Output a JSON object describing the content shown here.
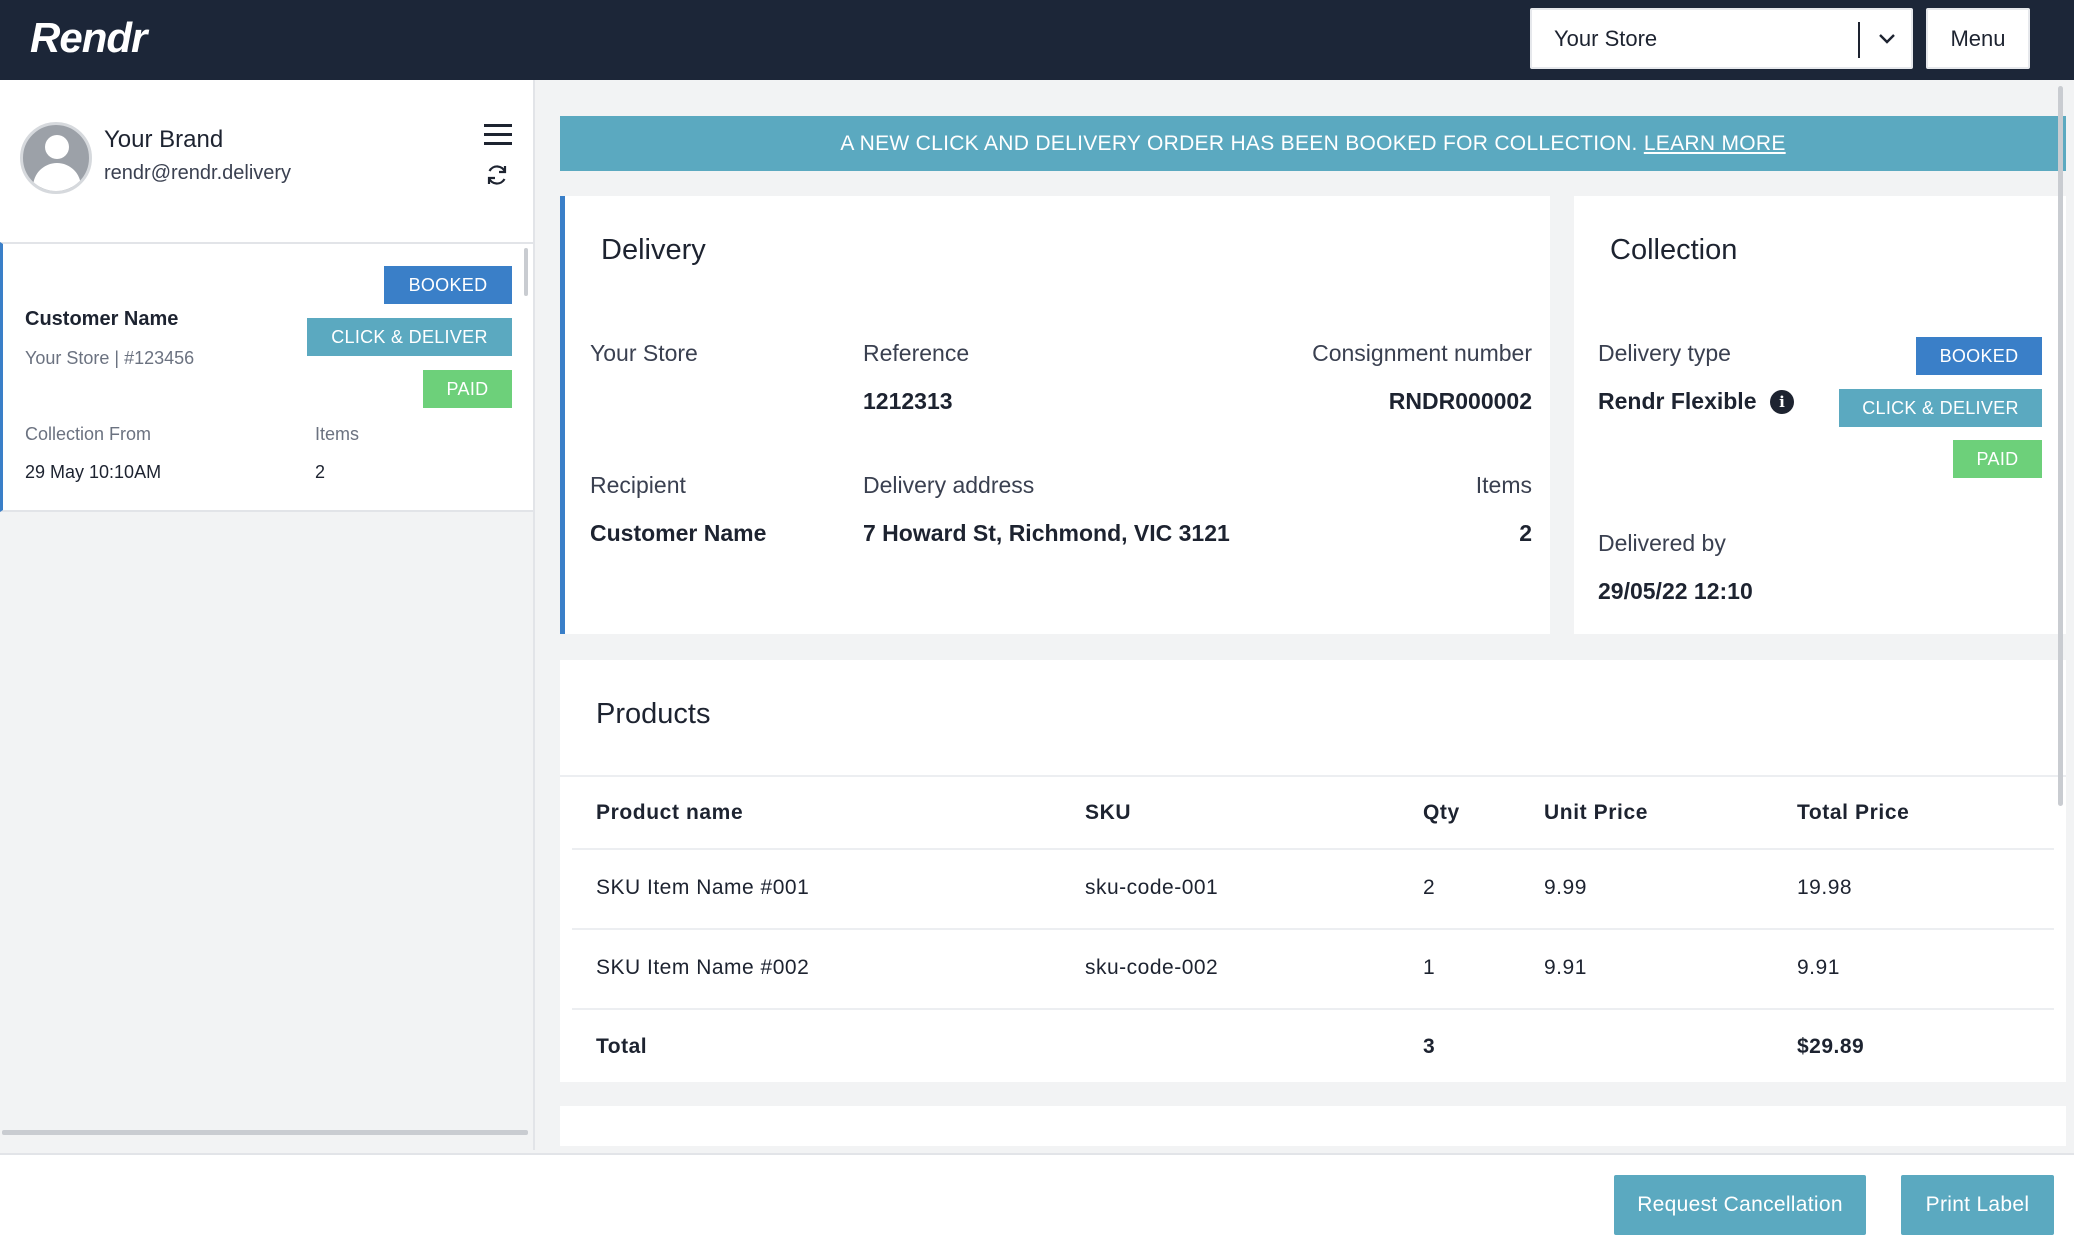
{
  "app": {
    "logo": "Rendr"
  },
  "header": {
    "store_select": "Your Store",
    "menu_label": "Menu"
  },
  "profile": {
    "brand": "Your Brand",
    "email": "rendr@rendr.delivery"
  },
  "order_card": {
    "badges": {
      "booked": "BOOKED",
      "click_deliver": "CLICK & DELIVER",
      "paid": "PAID"
    },
    "customer_name": "Customer Name",
    "store_ref": "Your Store | #123456",
    "collection_from_label": "Collection From",
    "collection_from_value": "29 May 10:10AM",
    "items_label": "Items",
    "items_value": "2"
  },
  "banner": {
    "text": "A NEW CLICK AND DELIVERY ORDER HAS BEEN BOOKED FOR COLLECTION.",
    "link": "LEARN MORE"
  },
  "delivery": {
    "title": "Delivery",
    "store": "Your Store",
    "reference_label": "Reference",
    "reference_value": "1212313",
    "consignment_label": "Consignment number",
    "consignment_value": "RNDR000002",
    "recipient_label": "Recipient",
    "recipient_value": "Customer Name",
    "address_label": "Delivery address",
    "address_value": "7 Howard St, Richmond, VIC 3121",
    "items_label": "Items",
    "items_value": "2"
  },
  "collection": {
    "title": "Collection",
    "delivery_type_label": "Delivery type",
    "delivery_type_value": "Rendr Flexible",
    "badges": {
      "booked": "BOOKED",
      "click_deliver": "CLICK & DELIVER",
      "paid": "PAID"
    },
    "delivered_by_label": "Delivered by",
    "delivered_by_value": "29/05/22 12:10"
  },
  "products": {
    "title": "Products",
    "columns": [
      "Product name",
      "SKU",
      "Qty",
      "Unit Price",
      "Total Price"
    ],
    "rows": [
      {
        "name": "SKU Item Name #001",
        "sku": "sku-code-001",
        "qty": "2",
        "unit": "9.99",
        "total": "19.98"
      },
      {
        "name": "SKU Item Name #002",
        "sku": "sku-code-002",
        "qty": "1",
        "unit": "9.91",
        "total": "9.91"
      }
    ],
    "total": {
      "label": "Total",
      "qty": "3",
      "total": "$29.89"
    }
  },
  "footer": {
    "cancel_label": "Request Cancellation",
    "print_label": "Print Label"
  },
  "colors": {
    "navbar": "#1c2638",
    "accent_teal": "#5ba9c0",
    "accent_blue": "#3a7fc8",
    "paid_green": "#6dd07a"
  },
  "icons": [
    "chevron-down-icon",
    "hamburger-icon",
    "refresh-icon",
    "avatar-icon",
    "info-icon"
  ]
}
